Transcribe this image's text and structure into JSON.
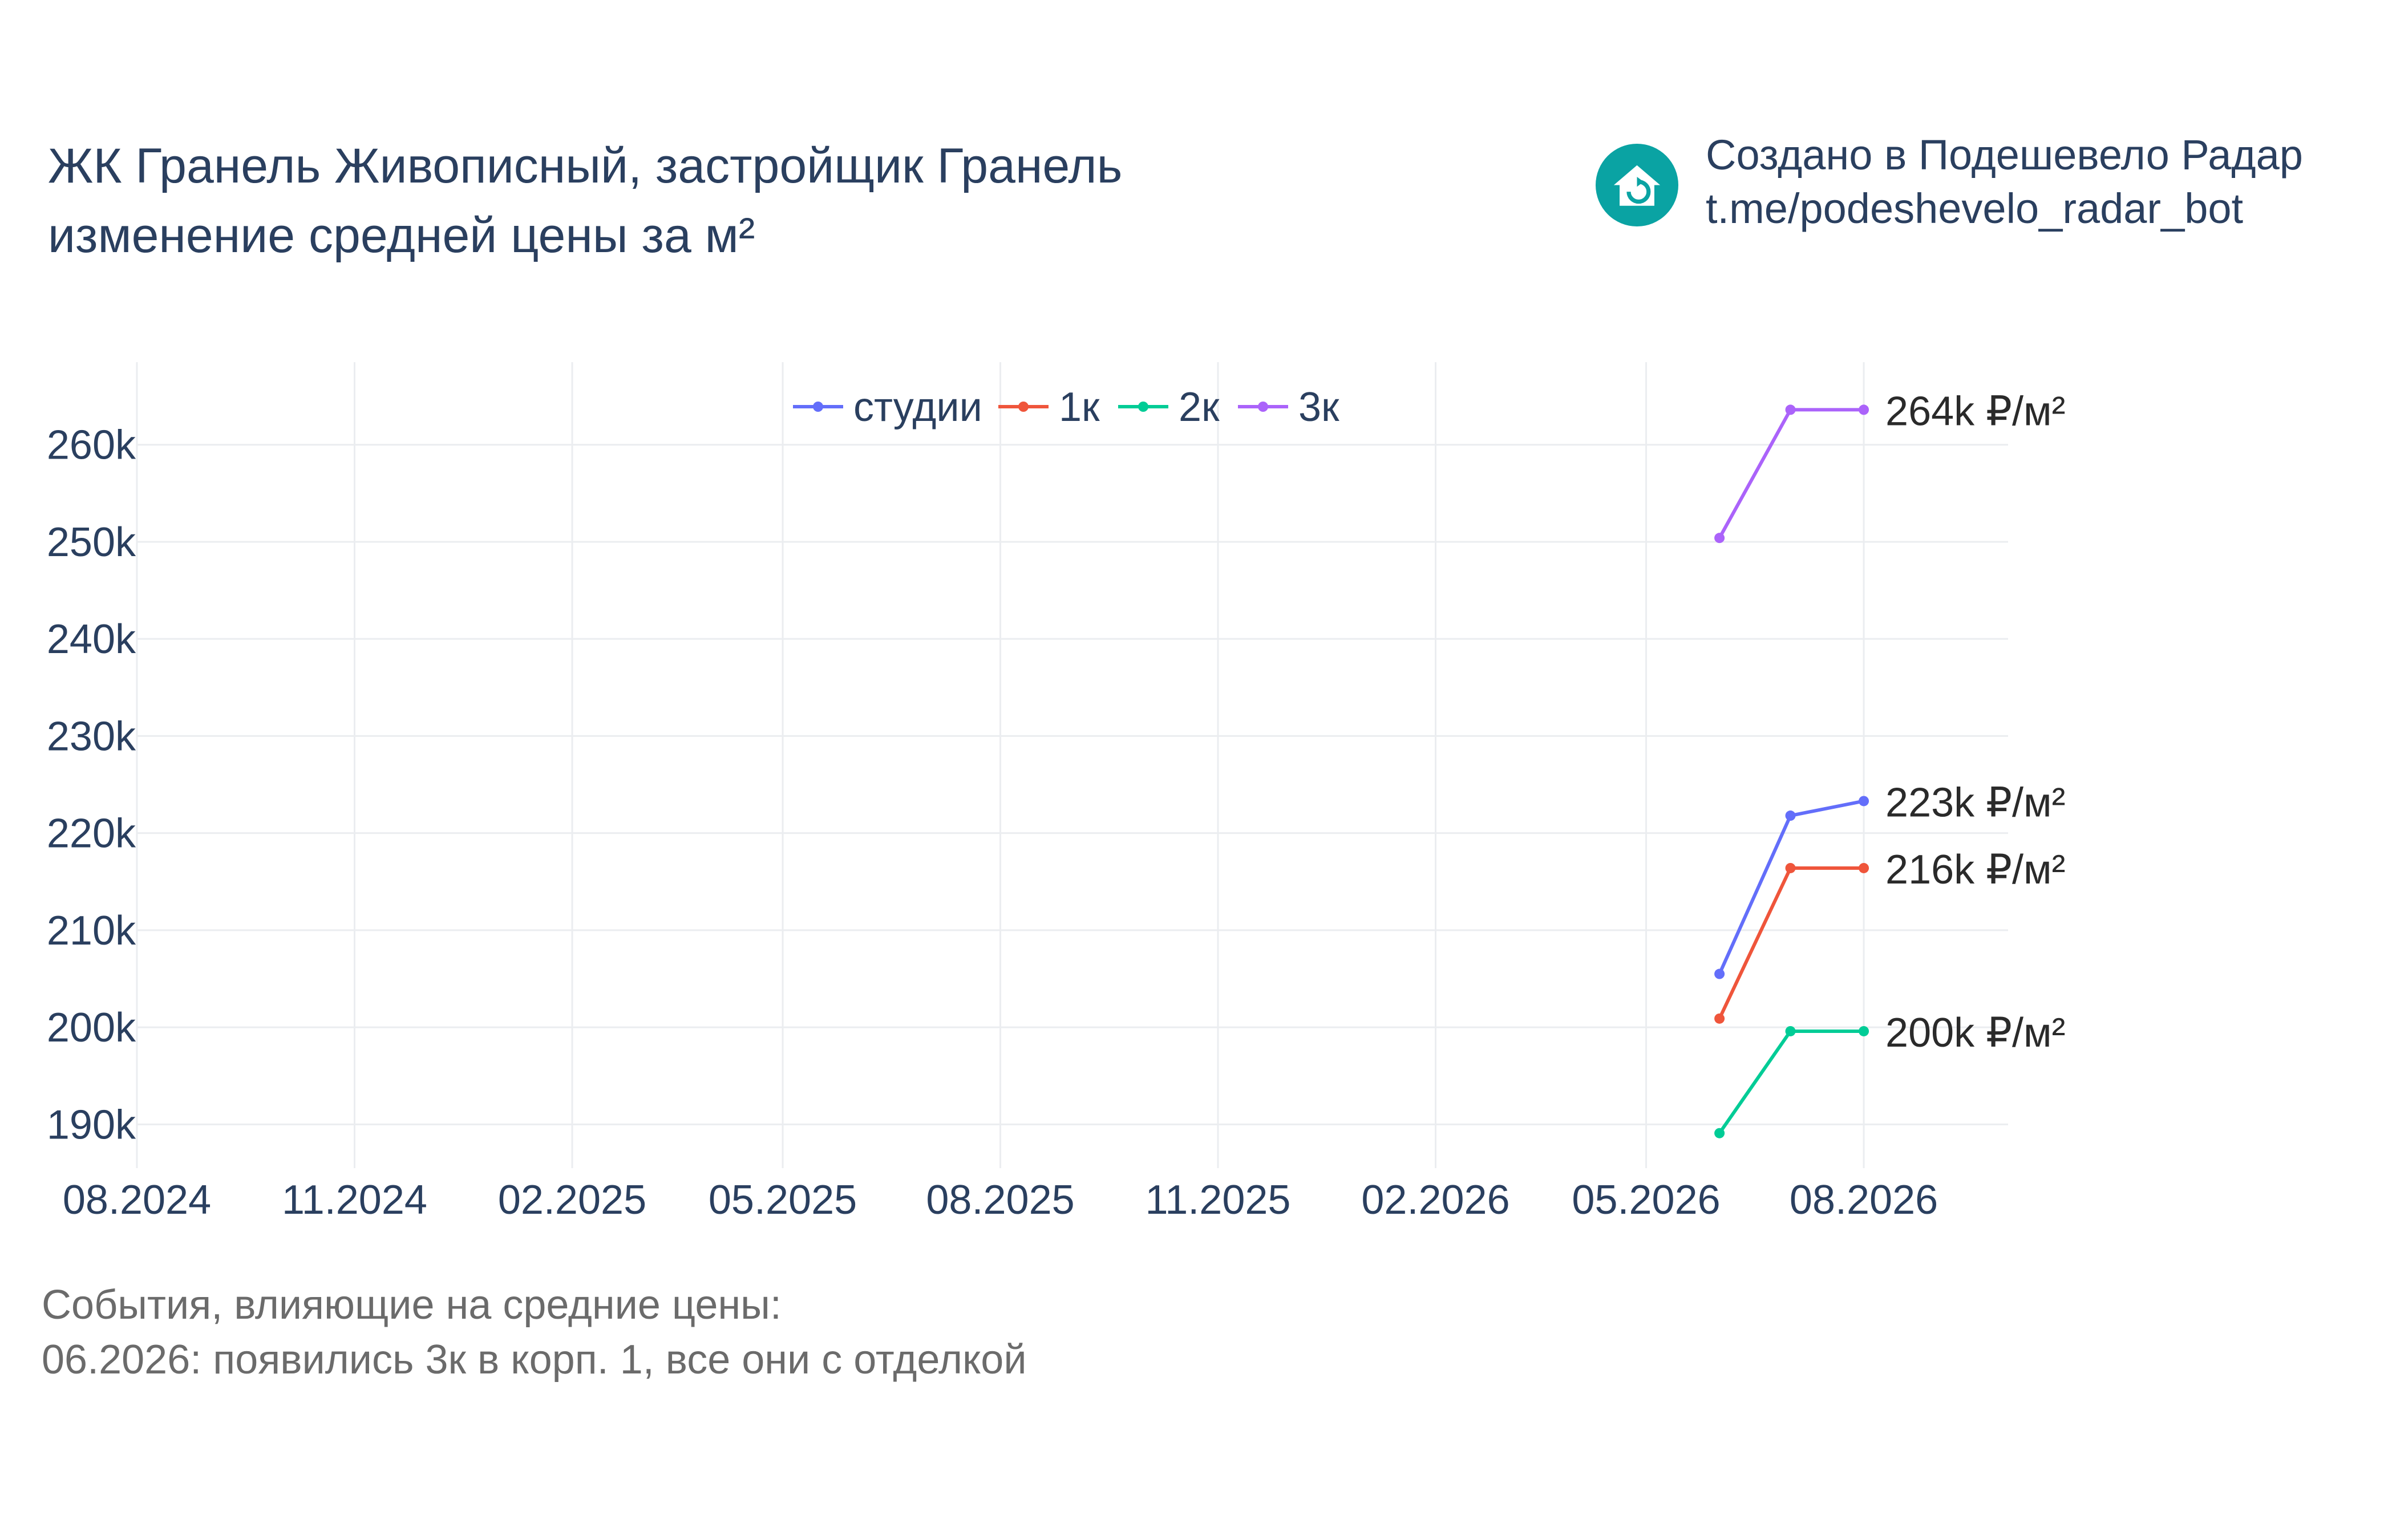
{
  "header": {
    "title_line1": "ЖК Гранель Живописный, застройщик Гранель",
    "title_line2": "изменение средней цены за м²"
  },
  "credit": {
    "icon": "house-refresh-icon",
    "icon_color": "#0aa3a3",
    "line1": "Создано в Подешевело Радар",
    "line2": "t.me/podeshevelo_radar_bot"
  },
  "notes": {
    "heading": "События, влияющие на средние цены:",
    "items": [
      "06.2026: появились 3к в корп. 1, все они с отделкой"
    ]
  },
  "chart_data": {
    "type": "line",
    "x_ticks": [
      "08.2024",
      "11.2024",
      "02.2025",
      "05.2025",
      "08.2025",
      "11.2025",
      "02.2026",
      "05.2026",
      "08.2026"
    ],
    "y_ticks": [
      "190k",
      "200k",
      "210k",
      "220k",
      "230k",
      "240k",
      "250k",
      "260k"
    ],
    "xlim": [
      "2024-08-01",
      "2026-10-01"
    ],
    "ylim": [
      185500,
      268500
    ],
    "grid": true,
    "legend_position": "top-center",
    "series": [
      {
        "name": "студии",
        "color": "#636efa",
        "x": [
          "2026-06-01",
          "2026-07-01",
          "2026-08-01"
        ],
        "y": [
          205500,
          221800,
          223300
        ],
        "end_label": "223k ₽/м²"
      },
      {
        "name": "1к",
        "color": "#ef553b",
        "x": [
          "2026-06-01",
          "2026-07-01",
          "2026-08-01"
        ],
        "y": [
          200900,
          216400,
          216400
        ],
        "end_label": "216k ₽/м²"
      },
      {
        "name": "2к",
        "color": "#00cc96",
        "x": [
          "2026-06-01",
          "2026-07-01",
          "2026-08-01"
        ],
        "y": [
          189100,
          199600,
          199600
        ],
        "end_label": "200k ₽/м²"
      },
      {
        "name": "3к",
        "color": "#ab63fa",
        "x": [
          "2026-06-01",
          "2026-07-01",
          "2026-08-01"
        ],
        "y": [
          250400,
          263600,
          263600
        ],
        "end_label": "264k ₽/м²"
      }
    ]
  }
}
